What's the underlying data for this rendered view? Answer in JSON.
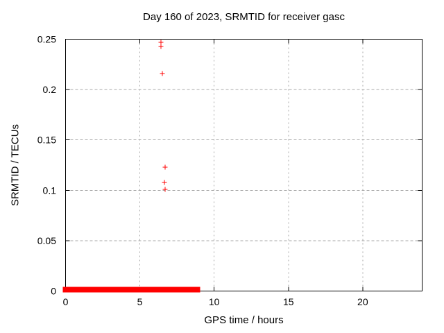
{
  "page": {
    "background": "#ffffff"
  },
  "chart_data": {
    "type": "scatter",
    "title": "Day 160 of 2023, SRMTID for receiver gasc",
    "xlabel": "GPS time / hours",
    "ylabel": "SRMTID / TECUs",
    "xlim": [
      0,
      24
    ],
    "ylim": [
      0,
      0.25
    ],
    "xticks": [
      0,
      5,
      10,
      15,
      20
    ],
    "xtick_labels": [
      "0",
      "5",
      "10",
      "15",
      "20"
    ],
    "yticks": [
      0,
      0.05,
      0.1,
      0.15,
      0.2,
      0.25
    ],
    "ytick_labels": [
      "0",
      "0.05",
      "0.1",
      "0.15",
      "0.2",
      "0.25"
    ],
    "grid": true,
    "legend_position": "none",
    "marker": "plus",
    "series": [
      {
        "name": "SRMTID",
        "color": "#ff0000",
        "points": [
          [
            6.4,
            0.247
          ],
          [
            6.4,
            0.243
          ],
          [
            6.5,
            0.216
          ],
          [
            6.7,
            0.123
          ],
          [
            6.65,
            0.108
          ],
          [
            6.7,
            0.101
          ]
        ],
        "dense_band": {
          "x_start": 0,
          "x_end": 9.05,
          "y": 0.0,
          "description": "continuous run of overlapping + markers at ~0 TECUs"
        }
      }
    ],
    "colors": {
      "axis": "#000000",
      "grid": "#a8a8a8",
      "text": "#000000",
      "marker": "#ff0000"
    }
  }
}
